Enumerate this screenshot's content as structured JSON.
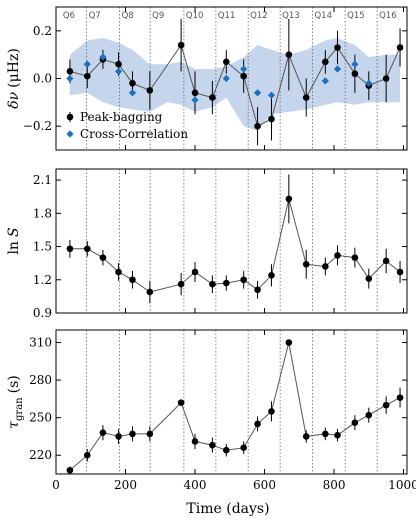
{
  "chart_data": [
    {
      "type": "scatter",
      "ylabel_main": "δν",
      "ylabel_unit": "(μHz)",
      "ylim": [
        -0.3,
        0.3
      ],
      "yticks": [
        -0.2,
        0.0,
        0.2
      ],
      "ytick_labels": [
        "−0.2",
        "0.0",
        "0.2"
      ],
      "quarters": [
        "Q6",
        "Q7",
        "Q8",
        "Q9",
        "Q10",
        "Q11",
        "Q12",
        "Q13",
        "Q14",
        "Q15",
        "Q16"
      ],
      "legend": {
        "placement": "bottom-left",
        "entries": [
          "Peak-bagging",
          "Cross-Correlation"
        ]
      },
      "series": [
        {
          "name": "Peak-bagging",
          "marker": "circle",
          "color": "#000000",
          "x": [
            40,
            90,
            135,
            180,
            220,
            270,
            360,
            400,
            450,
            490,
            540,
            580,
            620,
            670,
            720,
            775,
            810,
            860,
            900,
            950,
            990
          ],
          "y": [
            0.03,
            0.01,
            0.08,
            0.06,
            -0.02,
            -0.05,
            0.14,
            -0.06,
            -0.08,
            0.07,
            0.01,
            -0.2,
            -0.17,
            0.1,
            -0.08,
            0.07,
            0.13,
            0.02,
            -0.03,
            0.0,
            0.13
          ],
          "err": [
            0.05,
            0.05,
            0.04,
            0.05,
            0.05,
            0.08,
            0.11,
            0.09,
            0.07,
            0.05,
            0.07,
            0.08,
            0.09,
            0.15,
            0.08,
            0.05,
            0.07,
            0.08,
            0.06,
            0.1,
            0.08
          ]
        },
        {
          "name": "Cross-Correlation",
          "marker": "diamond",
          "color": "#1f6fbf",
          "x": [
            40,
            90,
            135,
            180,
            220,
            400,
            490,
            540,
            580,
            620,
            775,
            810,
            860,
            900
          ],
          "y": [
            0.0,
            0.06,
            0.09,
            0.03,
            -0.06,
            -0.09,
            0.0,
            0.04,
            -0.06,
            -0.07,
            -0.01,
            0.04,
            0.06,
            -0.02
          ]
        }
      ],
      "band": {
        "color": "#c5d5ec",
        "x": [
          40,
          90,
          135,
          180,
          220,
          270,
          320,
          360,
          400,
          450,
          490,
          540,
          580,
          620,
          670,
          720,
          775,
          810,
          860,
          900,
          950,
          990
        ],
        "lower": [
          -0.07,
          -0.06,
          -0.1,
          -0.12,
          -0.13,
          -0.14,
          -0.1,
          -0.11,
          -0.14,
          -0.12,
          -0.08,
          -0.2,
          -0.22,
          -0.15,
          -0.14,
          -0.13,
          -0.11,
          -0.1,
          -0.11,
          -0.1,
          -0.1,
          -0.1
        ],
        "upper": [
          0.1,
          0.16,
          0.17,
          0.15,
          0.12,
          0.06,
          0.06,
          0.07,
          0.04,
          0.04,
          0.05,
          0.09,
          0.14,
          0.12,
          0.1,
          0.12,
          0.16,
          0.17,
          0.14,
          0.09,
          0.1,
          0.1
        ]
      }
    },
    {
      "type": "scatter",
      "ylabel_main": "ln",
      "ylabel_italic": "S",
      "ylim": [
        0.9,
        2.2
      ],
      "yticks": [
        0.9,
        1.2,
        1.5,
        1.8,
        2.1
      ],
      "ytick_labels": [
        "0.9",
        "1.2",
        "1.5",
        "1.8",
        "2.1"
      ],
      "series": [
        {
          "marker": "circle",
          "color": "#000000",
          "x": [
            40,
            90,
            135,
            180,
            220,
            270,
            360,
            400,
            450,
            490,
            540,
            580,
            620,
            670,
            720,
            775,
            810,
            860,
            900,
            950,
            990
          ],
          "y": [
            1.48,
            1.48,
            1.4,
            1.27,
            1.2,
            1.09,
            1.16,
            1.27,
            1.16,
            1.17,
            1.2,
            1.11,
            1.24,
            1.93,
            1.34,
            1.32,
            1.42,
            1.4,
            1.21,
            1.37,
            1.27
          ],
          "err": [
            0.08,
            0.07,
            0.07,
            0.08,
            0.08,
            0.1,
            0.1,
            0.09,
            0.08,
            0.07,
            0.08,
            0.08,
            0.1,
            0.22,
            0.13,
            0.08,
            0.09,
            0.09,
            0.09,
            0.11,
            0.1
          ]
        }
      ]
    },
    {
      "type": "scatter",
      "ylabel_main": "τ",
      "ylabel_sub": "gran",
      "ylabel_unit": "(s)",
      "xlabel": "Time (days)",
      "ylim": [
        205,
        320
      ],
      "yticks": [
        220,
        250,
        280,
        310
      ],
      "ytick_labels": [
        "220",
        "250",
        "280",
        "310"
      ],
      "xlim": [
        0,
        1010
      ],
      "xticks": [
        0,
        200,
        400,
        600,
        800,
        1000
      ],
      "xtick_labels": [
        "0",
        "200",
        "400",
        "600",
        "800",
        "1000"
      ],
      "series": [
        {
          "marker": "circle",
          "color": "#000000",
          "x": [
            40,
            90,
            135,
            180,
            220,
            270,
            360,
            400,
            450,
            490,
            540,
            580,
            620,
            670,
            720,
            775,
            810,
            860,
            900,
            950,
            990
          ],
          "y": [
            208,
            220,
            238,
            235,
            237,
            237,
            262,
            231,
            228,
            224,
            226,
            245,
            255,
            310,
            235,
            237,
            236,
            246,
            252,
            260,
            266
          ],
          "err": [
            3,
            5,
            6,
            6,
            6,
            6,
            2,
            6,
            6,
            5,
            5,
            6,
            8,
            1,
            5,
            5,
            5,
            6,
            6,
            7,
            8
          ]
        }
      ]
    }
  ],
  "shared": {
    "quarter_boundaries": [
      88,
      183,
      271,
      368,
      460,
      553,
      645,
      738,
      832,
      924
    ]
  }
}
